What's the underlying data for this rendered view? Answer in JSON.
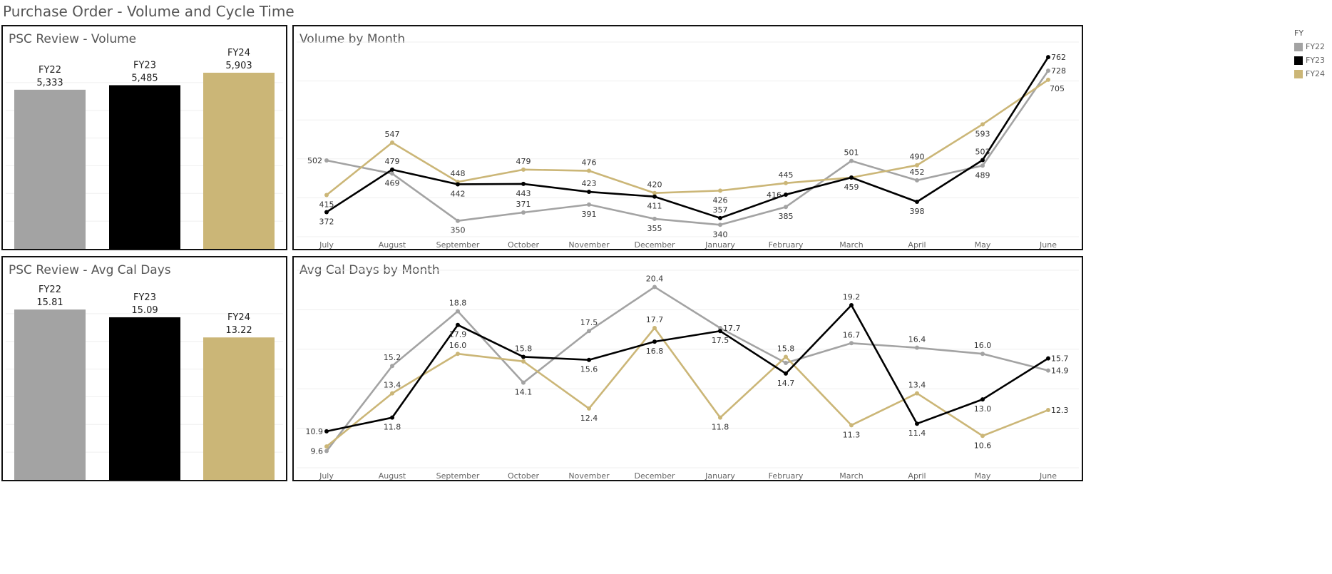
{
  "title": "Purchase Order - Volume and Cycle Time",
  "colors": {
    "FY22": "#a3a3a3",
    "FY23": "#000000",
    "FY24": "#cbb677"
  },
  "legend": {
    "title": "FY",
    "items": [
      "FY22",
      "FY23",
      "FY24"
    ]
  },
  "panels": {
    "volume_bar": {
      "title": "PSC Review - Volume"
    },
    "volume_line": {
      "title": "Volume by Month"
    },
    "days_bar": {
      "title": "PSC Review - Avg Cal Days"
    },
    "days_line": {
      "title": "Avg Cal Days by Month"
    }
  },
  "chart_data": [
    {
      "id": "volume_bar",
      "type": "bar",
      "title": "PSC Review - Volume",
      "categories": [
        "FY22",
        "FY23",
        "FY24"
      ],
      "values": [
        5333,
        5485,
        5903
      ],
      "value_labels": [
        "5,333",
        "5,485",
        "5,903"
      ],
      "ylim": [
        0,
        6500
      ],
      "grid": true
    },
    {
      "id": "volume_line",
      "type": "line",
      "title": "Volume by Month",
      "categories": [
        "July",
        "August",
        "September",
        "October",
        "November",
        "December",
        "January",
        "February",
        "March",
        "April",
        "May",
        "June"
      ],
      "ylim": [
        310,
        800
      ],
      "grid": true,
      "legend": "right",
      "series": [
        {
          "name": "FY22",
          "values": [
            502,
            469,
            350,
            371,
            391,
            355,
            340,
            385,
            501,
            452,
            489,
            728
          ]
        },
        {
          "name": "FY23",
          "values": [
            372,
            479,
            442,
            443,
            423,
            411,
            357,
            416,
            459,
            398,
            503,
            762
          ]
        },
        {
          "name": "FY24",
          "values": [
            415,
            547,
            448,
            479,
            476,
            420,
            426,
            445,
            459,
            490,
            593,
            705
          ]
        }
      ],
      "data_labels": [
        [
          "502",
          "469",
          "350",
          "371",
          "391",
          "355",
          "340",
          "385",
          "501",
          "452",
          "489",
          "728"
        ],
        [
          "372",
          "479",
          "442",
          "443",
          "423",
          "411",
          "357",
          "416",
          "459",
          "398",
          "503",
          "762"
        ],
        [
          "415",
          "547",
          "448",
          "479",
          "476",
          "420",
          "426",
          "445",
          "",
          "490",
          "593",
          "705"
        ]
      ]
    },
    {
      "id": "days_bar",
      "type": "bar",
      "title": "PSC Review - Avg Cal Days",
      "categories": [
        "FY22",
        "FY23",
        "FY24"
      ],
      "values": [
        15.81,
        15.09,
        13.22
      ],
      "value_labels": [
        "15.81",
        "15.09",
        "13.22"
      ],
      "ylim": [
        0,
        18
      ],
      "grid": true
    },
    {
      "id": "days_line",
      "type": "line",
      "title": "Avg Cal Days by Month",
      "categories": [
        "July",
        "August",
        "September",
        "October",
        "November",
        "December",
        "January",
        "February",
        "March",
        "April",
        "May",
        "June"
      ],
      "ylim": [
        8.5,
        21.5
      ],
      "grid": true,
      "legend": "right",
      "series": [
        {
          "name": "FY22",
          "values": [
            9.6,
            15.2,
            18.8,
            14.1,
            17.5,
            20.4,
            17.7,
            15.4,
            16.7,
            16.4,
            16.0,
            14.9
          ]
        },
        {
          "name": "FY23",
          "values": [
            10.9,
            11.8,
            17.9,
            15.8,
            15.6,
            16.8,
            17.5,
            14.7,
            19.2,
            11.4,
            13.0,
            15.7
          ]
        },
        {
          "name": "FY24",
          "values": [
            9.9,
            13.4,
            16.0,
            15.5,
            12.4,
            17.7,
            11.8,
            15.8,
            11.3,
            13.4,
            10.6,
            12.3
          ]
        }
      ],
      "data_labels": [
        [
          "9.6",
          "15.2",
          "18.8",
          "14.1",
          "17.5",
          "20.4",
          "17.7",
          "",
          "16.7",
          "16.4",
          "16.0",
          "14.9"
        ],
        [
          "10.9",
          "11.8",
          "17.9",
          "15.8",
          "15.6",
          "16.8",
          "17.5",
          "14.7",
          "19.2",
          "11.4",
          "13.0",
          "15.7"
        ],
        [
          "",
          "13.4",
          "16.0",
          "",
          "12.4",
          "17.7",
          "11.8",
          "15.8",
          "11.3",
          "13.4",
          "10.6",
          "12.3"
        ]
      ]
    }
  ]
}
